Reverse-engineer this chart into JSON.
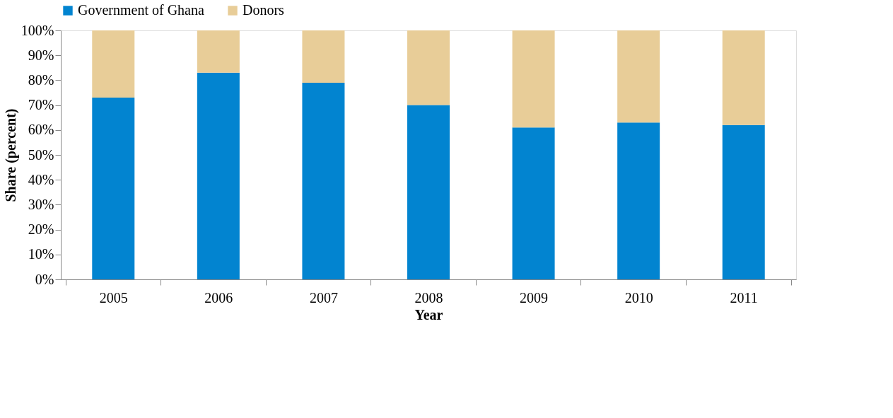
{
  "chart_data": {
    "type": "bar",
    "stacked": true,
    "xlabel": "Year",
    "ylabel": "Share (percent)",
    "categories": [
      "2005",
      "2006",
      "2007",
      "2008",
      "2009",
      "2010",
      "2011"
    ],
    "series": [
      {
        "name": "Government of Ghana",
        "color": "#0284d0",
        "values": [
          73,
          83,
          79,
          70,
          61,
          63,
          62
        ]
      },
      {
        "name": "Donors",
        "color": "#e8cd98",
        "values": [
          27,
          17,
          21,
          30,
          39,
          37,
          38
        ]
      }
    ],
    "ylim": [
      0,
      100
    ],
    "yticks": [
      {
        "value": 0,
        "label": "0%"
      },
      {
        "value": 10,
        "label": "10%"
      },
      {
        "value": 20,
        "label": "20%"
      },
      {
        "value": 30,
        "label": "30%"
      },
      {
        "value": 40,
        "label": "40%"
      },
      {
        "value": 50,
        "label": "50%"
      },
      {
        "value": 60,
        "label": "60%"
      },
      {
        "value": 70,
        "label": "70%"
      },
      {
        "value": 80,
        "label": "80%"
      },
      {
        "value": 90,
        "label": "90%"
      },
      {
        "value": 100,
        "label": "100%"
      }
    ],
    "grid": false,
    "legend": "top"
  }
}
